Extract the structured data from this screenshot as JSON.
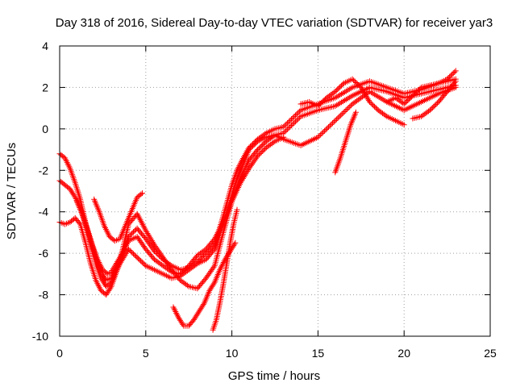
{
  "chart_data": {
    "type": "scatter",
    "title": "Day 318 of 2016, Sidereal Day-to-day VTEC variation (SDTVAR) for receiver yar3",
    "xlabel": "GPS time / hours",
    "ylabel": "SDTVAR / TECUs",
    "xlim": [
      0,
      25
    ],
    "ylim": [
      -10,
      4
    ],
    "xticks": [
      "0",
      "5",
      "10",
      "15",
      "20",
      "25"
    ],
    "yticks": [
      "-10",
      "-8",
      "-6",
      "-4",
      "-2",
      "0",
      "2",
      "4"
    ],
    "grid": true,
    "marker": "+",
    "color": "#ff0000",
    "series": [
      {
        "x": [
          0.0,
          0.3,
          0.6,
          0.9,
          1.2,
          1.5,
          1.8,
          2.1,
          2.4,
          2.7,
          3.0,
          3.5,
          4.0,
          4.5,
          5.0,
          5.5,
          6.0,
          6.5,
          7.0,
          7.5,
          8.0,
          8.5,
          9.0,
          9.5,
          10.0,
          10.3,
          10.6,
          11.0,
          11.5,
          12.0,
          12.5,
          13.0,
          14.0,
          15.0,
          16.0,
          17.0,
          18.0,
          19.0,
          20.0,
          21.0,
          22.0,
          23.0
        ],
        "y": [
          -1.2,
          -1.4,
          -1.9,
          -2.6,
          -3.4,
          -4.5,
          -5.6,
          -6.5,
          -7.2,
          -7.6,
          -7.4,
          -6.5,
          -5.8,
          -6.2,
          -6.6,
          -6.8,
          -7.0,
          -7.2,
          -7.1,
          -6.8,
          -6.5,
          -6.3,
          -5.8,
          -4.6,
          -3.2,
          -2.4,
          -1.8,
          -1.0,
          -0.6,
          -0.4,
          -0.3,
          -0.2,
          0.6,
          0.9,
          1.1,
          1.6,
          2.0,
          1.8,
          1.5,
          1.7,
          1.9,
          2.1
        ]
      },
      {
        "x": [
          0.0,
          0.3,
          0.6,
          0.9,
          1.2,
          1.5,
          1.8,
          2.1,
          2.4,
          2.7,
          3.0,
          3.5,
          4.0,
          4.5,
          5.0,
          5.5,
          6.0,
          6.5,
          7.0,
          7.5,
          8.0,
          8.5,
          9.0,
          9.5,
          10.0,
          10.3,
          10.6,
          11.0,
          11.5,
          12.0,
          12.5,
          13.0,
          14.0,
          15.0,
          16.0,
          17.0,
          18.0,
          19.0,
          20.0,
          21.0,
          22.0,
          23.0
        ],
        "y": [
          -2.5,
          -2.7,
          -2.9,
          -3.3,
          -3.8,
          -4.6,
          -5.4,
          -6.2,
          -6.9,
          -7.3,
          -7.2,
          -6.4,
          -5.2,
          -4.8,
          -5.3,
          -5.9,
          -6.3,
          -6.6,
          -6.8,
          -6.7,
          -6.4,
          -6.0,
          -5.6,
          -4.2,
          -2.7,
          -2.0,
          -1.5,
          -0.9,
          -0.5,
          -0.2,
          0.0,
          0.1,
          0.9,
          1.2,
          1.5,
          2.0,
          2.3,
          2.0,
          1.7,
          1.9,
          2.2,
          2.4
        ]
      },
      {
        "x": [
          0.0,
          0.3,
          0.6,
          0.9,
          1.2,
          1.5,
          1.8,
          2.1,
          2.4,
          2.7,
          3.0,
          3.5,
          4.0,
          4.5,
          5.0,
          5.5,
          6.0,
          6.5,
          7.0,
          7.5,
          8.0,
          8.5,
          9.0,
          9.5,
          10.0,
          10.3,
          10.6,
          11.0,
          11.5,
          12.0,
          12.5,
          13.0,
          14.0,
          15.0,
          16.0,
          17.0,
          18.0,
          19.0,
          20.0,
          21.0,
          22.0,
          23.0
        ],
        "y": [
          -4.5,
          -4.6,
          -4.5,
          -4.3,
          -4.6,
          -5.5,
          -6.5,
          -7.3,
          -7.8,
          -8.0,
          -7.6,
          -6.4,
          -4.6,
          -4.1,
          -4.9,
          -5.6,
          -6.2,
          -6.8,
          -7.3,
          -7.6,
          -7.7,
          -7.2,
          -6.6,
          -5.0,
          -3.5,
          -2.8,
          -2.2,
          -1.5,
          -1.0,
          -0.6,
          -0.3,
          -0.5,
          -0.8,
          -0.4,
          0.4,
          1.2,
          1.8,
          1.3,
          0.9,
          1.3,
          1.7,
          2.0
        ]
      },
      {
        "x": [
          1.0,
          1.3,
          1.6,
          1.9,
          2.2,
          2.5,
          2.8,
          3.0,
          3.5,
          4.0,
          4.5,
          5.0,
          5.5,
          6.0,
          6.5,
          7.0,
          7.5,
          8.0,
          8.5,
          9.0,
          9.5,
          10.0,
          10.5,
          11.0,
          11.5,
          12.0,
          12.5,
          13.0
        ],
        "y": [
          -3.5,
          -4.1,
          -4.8,
          -5.6,
          -6.3,
          -6.8,
          -7.0,
          -6.9,
          -6.2,
          -5.4,
          -5.2,
          -5.8,
          -6.3,
          -6.6,
          -6.9,
          -7.0,
          -6.6,
          -6.1,
          -5.8,
          -5.3,
          -4.5,
          -3.5,
          -2.6,
          -1.9,
          -1.3,
          -0.9,
          -0.6,
          -0.4
        ]
      },
      {
        "x": [
          2.0,
          2.3,
          2.6,
          2.9,
          3.2,
          3.5,
          4.0,
          4.5,
          4.8
        ],
        "y": [
          -3.4,
          -4.0,
          -4.7,
          -5.2,
          -5.4,
          -5.3,
          -4.3,
          -3.3,
          -3.1
        ]
      },
      {
        "x": [
          6.6,
          6.9,
          7.2,
          7.5,
          7.8,
          8.1,
          8.4,
          8.7,
          9.0,
          9.3,
          9.6,
          9.9,
          10.2
        ],
        "y": [
          -8.6,
          -9.1,
          -9.5,
          -9.5,
          -9.2,
          -8.8,
          -8.4,
          -7.8,
          -7.4,
          -6.8,
          -6.3,
          -5.9,
          -5.5
        ]
      },
      {
        "x": [
          8.9,
          9.1,
          9.3,
          9.5,
          9.7,
          9.9,
          10.1,
          10.3
        ],
        "y": [
          -9.7,
          -9.2,
          -8.4,
          -7.5,
          -6.5,
          -5.5,
          -4.6,
          -3.9
        ]
      },
      {
        "x": [
          14.0,
          14.5,
          15.0,
          15.5,
          16.0,
          16.5,
          17.0,
          17.5,
          18.0,
          18.5,
          19.0,
          19.5,
          20.0
        ],
        "y": [
          1.2,
          1.3,
          1.1,
          1.5,
          1.8,
          2.2,
          2.4,
          2.0,
          1.3,
          0.9,
          0.6,
          0.4,
          0.2
        ]
      },
      {
        "x": [
          16.0,
          16.3,
          16.6,
          16.9,
          17.2
        ],
        "y": [
          -2.1,
          -1.4,
          -0.6,
          0.2,
          0.8
        ]
      },
      {
        "x": [
          20.5,
          21.0,
          21.5,
          22.0,
          22.5,
          23.0
        ],
        "y": [
          0.5,
          0.6,
          0.9,
          1.3,
          1.8,
          2.3
        ]
      },
      {
        "x": [
          19.0,
          19.5,
          20.0,
          20.5,
          21.0,
          21.5,
          22.0,
          22.5,
          23.0
        ],
        "y": [
          1.3,
          1.5,
          1.2,
          1.6,
          2.0,
          2.1,
          2.2,
          2.4,
          2.8
        ]
      }
    ]
  }
}
